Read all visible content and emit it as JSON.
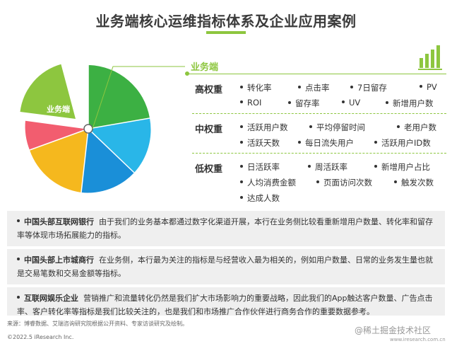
{
  "title": "业务端核心运维指标体系及企业应用案例",
  "pie_label": "业务端",
  "section_header": "业务端",
  "colors": {
    "green": "#8dc63f",
    "slices": [
      "#8dc63f",
      "#3cb043",
      "#29b6e8",
      "#1a8fd8",
      "#f5b81e",
      "#f25d6f"
    ]
  },
  "rows": [
    {
      "label": "高权重",
      "metrics": [
        "转化率",
        "点击率",
        "7日留存",
        "PV",
        "ROI",
        "留存率",
        "UV",
        "新增用户数"
      ]
    },
    {
      "label": "中权重",
      "metrics": [
        "活跃用户数",
        "平均停留时间",
        "老用户数",
        "活跃天数",
        "每日流失用户",
        "活跃用户ID数"
      ]
    },
    {
      "label": "低权重",
      "metrics": [
        "日活跃率",
        "周活跃率",
        "新增用户占比",
        "人均消费金额",
        "页面访问次数",
        "触发次数",
        "达成人数"
      ]
    }
  ],
  "cases": [
    {
      "name": "中国头部互联网银行",
      "text": "由于我们的业务基本都通过数字化渠道开展，本行在业务侧比较看重新增用户数量、转化率和留存率等体现市场拓展能力的指标。"
    },
    {
      "name": "中国头部上市城商行",
      "text": "在业务侧，本行最为关注的指标是与经营收入最为相关的，例如用户数量、日常的业务发生量也就是交易笔数和交易金额等指标。"
    },
    {
      "name": "互联网娱乐企业",
      "text": "营销推广和流量转化仍然是我们扩大市场影响力的重要战略，因此我们的App触达客户数量、广告点击率、客户转化率等指标是我们比较关注的，也是我们和市场推广合作伙伴进行商务合作的重要数据参考。"
    }
  ],
  "source": "来源：博睿数据、艾瑞咨询研究院根据公开资料、专家访谈研究及绘制。",
  "copyright": "©2022.5 iResearch Inc.",
  "watermark": "@稀土掘金技术社区",
  "site": "www.iresearch.com.cn"
}
